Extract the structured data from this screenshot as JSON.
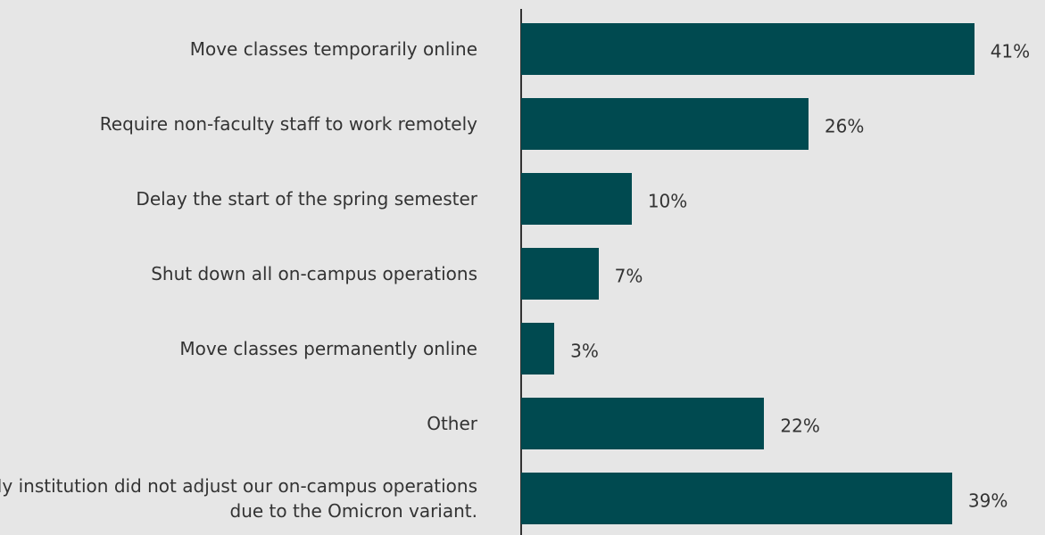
{
  "chart_data": {
    "type": "bar",
    "orientation": "horizontal",
    "categories": [
      "Move classes temporarily online",
      "Require non-faculty staff to work remotely",
      "Delay the start of the spring semester",
      "Shut down all on-campus operations",
      "Move classes permanently online",
      "Other",
      "My institution did not adjust our on-campus operations due to the Omicron variant."
    ],
    "values": [
      41,
      26,
      10,
      7,
      3,
      22,
      39
    ],
    "value_labels": [
      "41%",
      "26%",
      "10%",
      "7%",
      "3%",
      "22%",
      "39%"
    ],
    "color": "#004a50",
    "xlim": [
      0,
      47
    ]
  }
}
